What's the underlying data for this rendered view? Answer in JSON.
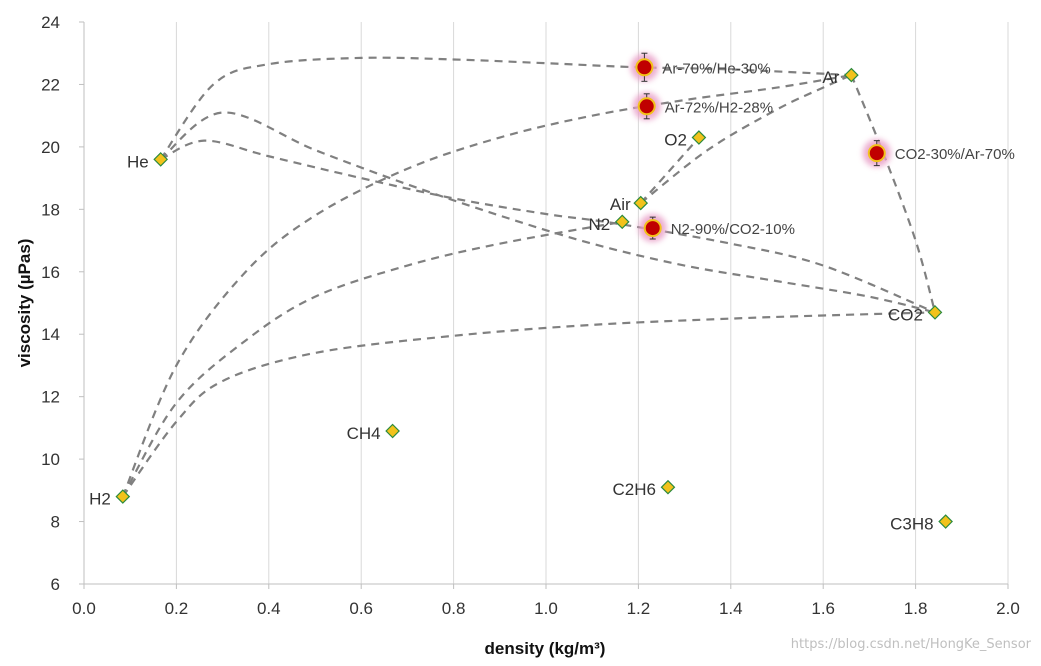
{
  "chart_data": {
    "type": "scatter",
    "xlabel": "density (kg/m³)",
    "ylabel": "viscosity (µPas)",
    "xlim": [
      0,
      2
    ],
    "ylim": [
      6,
      24
    ],
    "x_ticks": [
      "0.0",
      "0.2",
      "0.4",
      "0.6",
      "0.8",
      "1.0",
      "1.2",
      "1.4",
      "1.6",
      "1.8",
      "2.0"
    ],
    "y_ticks": [
      "6",
      "8",
      "10",
      "12",
      "14",
      "16",
      "18",
      "20",
      "22",
      "24"
    ],
    "grid": "vertical",
    "gases": [
      {
        "label": "H2",
        "x": 0.084,
        "y": 8.8
      },
      {
        "label": "He",
        "x": 0.166,
        "y": 19.6
      },
      {
        "label": "CH4",
        "x": 0.668,
        "y": 10.9
      },
      {
        "label": "N2",
        "x": 1.165,
        "y": 17.6
      },
      {
        "label": "Air",
        "x": 1.205,
        "y": 18.2
      },
      {
        "label": "C2H6",
        "x": 1.264,
        "y": 9.1
      },
      {
        "label": "O2",
        "x": 1.331,
        "y": 20.3
      },
      {
        "label": "Ar",
        "x": 1.661,
        "y": 22.3
      },
      {
        "label": "CO2",
        "x": 1.842,
        "y": 14.7
      },
      {
        "label": "C3H8",
        "x": 1.865,
        "y": 8.0
      }
    ],
    "mixtures": [
      {
        "label": "Ar-70%/He-30%",
        "x": 1.213,
        "y": 22.55,
        "err": 0.45
      },
      {
        "label": "Ar-72%/H2-28%",
        "x": 1.218,
        "y": 21.3,
        "err": 0.4
      },
      {
        "label": "CO2-30%/Ar-70%",
        "x": 1.716,
        "y": 19.8,
        "err": 0.4
      },
      {
        "label": "N2-90%/CO2-10%",
        "x": 1.231,
        "y": 17.4,
        "err": 0.35
      }
    ],
    "curves": [
      {
        "name": "He-Ar",
        "points": [
          [
            0.166,
            19.6
          ],
          [
            0.28,
            22.0
          ],
          [
            0.4,
            22.65
          ],
          [
            0.6,
            22.85
          ],
          [
            0.8,
            22.8
          ],
          [
            1.0,
            22.68
          ],
          [
            1.2,
            22.55
          ],
          [
            1.4,
            22.48
          ],
          [
            1.661,
            22.3
          ]
        ]
      },
      {
        "name": "He-CO2a",
        "points": [
          [
            0.166,
            19.6
          ],
          [
            0.3,
            21.1
          ],
          [
            0.5,
            19.9
          ],
          [
            0.7,
            18.8
          ],
          [
            0.9,
            17.8
          ],
          [
            1.1,
            16.9
          ],
          [
            1.3,
            16.2
          ],
          [
            1.5,
            15.7
          ],
          [
            1.7,
            15.2
          ],
          [
            1.842,
            14.7
          ]
        ]
      },
      {
        "name": "He-CO2b",
        "points": [
          [
            0.166,
            19.6
          ],
          [
            0.26,
            20.2
          ],
          [
            0.4,
            19.7
          ],
          [
            0.6,
            19.0
          ],
          [
            0.8,
            18.35
          ],
          [
            1.0,
            17.85
          ],
          [
            1.15,
            17.55
          ],
          [
            1.4,
            16.9
          ],
          [
            1.6,
            16.2
          ],
          [
            1.842,
            14.7
          ]
        ]
      },
      {
        "name": "H2-Ar",
        "points": [
          [
            0.084,
            8.8
          ],
          [
            0.2,
            13.0
          ],
          [
            0.35,
            16.0
          ],
          [
            0.5,
            17.8
          ],
          [
            0.7,
            19.3
          ],
          [
            0.9,
            20.3
          ],
          [
            1.1,
            21.0
          ],
          [
            1.3,
            21.5
          ],
          [
            1.5,
            21.9
          ],
          [
            1.661,
            22.3
          ]
        ]
      },
      {
        "name": "H2-N2",
        "points": [
          [
            0.084,
            8.8
          ],
          [
            0.2,
            11.8
          ],
          [
            0.35,
            13.8
          ],
          [
            0.5,
            15.2
          ],
          [
            0.7,
            16.2
          ],
          [
            0.9,
            16.9
          ],
          [
            1.165,
            17.6
          ]
        ]
      },
      {
        "name": "H2-CO2",
        "points": [
          [
            0.084,
            8.8
          ],
          [
            0.2,
            11.2
          ],
          [
            0.3,
            12.5
          ],
          [
            0.5,
            13.4
          ],
          [
            0.8,
            13.95
          ],
          [
            1.1,
            14.3
          ],
          [
            1.4,
            14.5
          ],
          [
            1.6,
            14.6
          ],
          [
            1.842,
            14.7
          ]
        ]
      },
      {
        "name": "Air-Ar",
        "points": [
          [
            1.205,
            18.2
          ],
          [
            1.35,
            19.9
          ],
          [
            1.5,
            21.2
          ],
          [
            1.6,
            21.9
          ],
          [
            1.661,
            22.3
          ]
        ]
      },
      {
        "name": "Air-O2",
        "points": [
          [
            1.205,
            18.2
          ],
          [
            1.265,
            19.2
          ],
          [
            1.331,
            20.3
          ]
        ]
      },
      {
        "name": "Ar-CO2",
        "points": [
          [
            1.661,
            22.3
          ],
          [
            1.73,
            19.8
          ],
          [
            1.8,
            17.0
          ],
          [
            1.842,
            14.7
          ]
        ]
      }
    ]
  },
  "watermark": "https://blog.csdn.net/HongKe_Sensor",
  "colors": {
    "gas_marker_fill": "#f2c21b",
    "gas_marker_stroke": "#2b8a3e",
    "mixture_fill": "#c00000",
    "mixture_ring": "#f2c21b",
    "mixture_glow": "#e9a0c8",
    "curve": "#808080",
    "grid": "#d9d9d9",
    "axis": "#bfbfbf"
  }
}
